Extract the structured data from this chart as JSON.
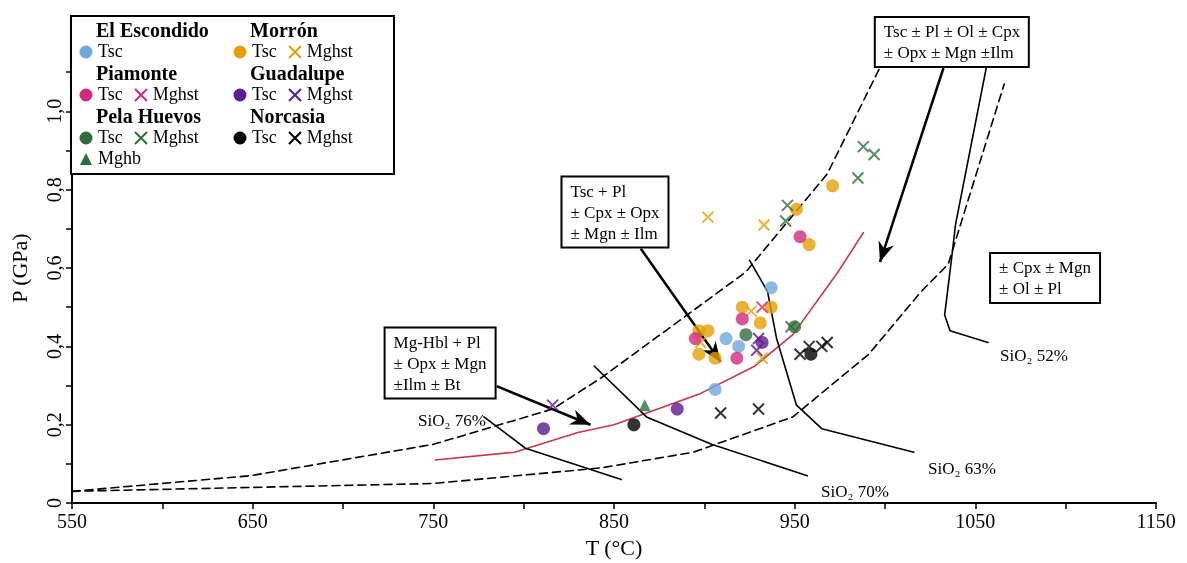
{
  "chart_data": {
    "type": "scatter",
    "xlabel": "T (°C)",
    "ylabel": "P (GPa)",
    "xlim": [
      550,
      1150
    ],
    "xticks": [
      550,
      {
        "value": 600,
        "label": null
      },
      650,
      {
        "value": 700,
        "label": null
      },
      750,
      {
        "value": 800,
        "label": null
      },
      850,
      {
        "value": 900,
        "label": null
      },
      950,
      {
        "value": 1000,
        "label": null
      },
      1050,
      {
        "value": 1100,
        "label": null
      },
      1150
    ],
    "ylim": [
      0,
      1.2
    ],
    "yticks": [
      0,
      {
        "value": 0.1,
        "label": null
      },
      {
        "value": 0.2,
        "label": "0,2"
      },
      {
        "value": 0.3,
        "label": null
      },
      {
        "value": 0.4,
        "label": "0,4"
      },
      {
        "value": 0.5,
        "label": null
      },
      {
        "value": 0.6,
        "label": "0,6"
      },
      {
        "value": 0.7,
        "label": null
      },
      {
        "value": 0.8,
        "label": "0,8"
      },
      {
        "value": 0.9,
        "label": null
      },
      {
        "value": 1.0,
        "label": "1,0"
      },
      {
        "value": 1.1,
        "label": null
      }
    ],
    "grid": false,
    "legend": "top left",
    "annotations": [
      {
        "text": "Tsc + Pl\n± Cpx ± Opx\n± Mgn ± Ilm",
        "x": 909,
        "y": 0.36
      },
      "Tsc ± Pl ± Ol ± Cpx\n± Opx ± Mgn ±Ilm",
      {
        "text": "Mg-Hbl + Pl\n± Opx ± Mgn\n±Ilm ± Bt",
        "x": 837,
        "y": 0.2
      },
      "± Cpx ± Mgn\n± Ol ± Pl",
      "SiO₂ 76%",
      "SiO₂ 70%",
      "SiO₂ 63%",
      "SiO₂ 52%",
      "El Escondido",
      "Morrón",
      "Piamonte",
      "Guadalupe",
      "Pela Huevos",
      "Norcasia"
    ],
    "series": [
      {
        "type": "line",
        "color": "#c8374b",
        "marker": "none",
        "line_style": "solid",
        "x": [
          751,
          795,
          830,
          850,
          898,
          928,
          949,
          974,
          988
        ],
        "values": [
          0.11,
          0.13,
          0.18,
          0.2,
          0.28,
          0.35,
          0.43,
          0.59,
          0.69
        ]
      },
      {
        "type": "line",
        "color": "#000000",
        "marker": "none",
        "line_style": "dashed",
        "x": [
          550,
          649,
          750,
          816,
          843,
          923,
          968,
          997
        ],
        "values": [
          0.03,
          0.07,
          0.15,
          0.24,
          0.32,
          0.59,
          0.84,
          1.11
        ]
      },
      {
        "type": "line",
        "color": "#000000",
        "marker": "none",
        "line_style": "dashed",
        "x": [
          550,
          649,
          750,
          843,
          894,
          949,
          991,
          1020,
          1035,
          1066
        ],
        "values": [
          0.03,
          0.04,
          0.05,
          0.09,
          0.13,
          0.22,
          0.38,
          0.54,
          0.61,
          1.07
        ]
      },
      {
        "type": "line",
        "color": "#000000",
        "marker": "none",
        "line_style": "solid",
        "x": [
          778,
          801,
          854
        ],
        "values": [
          0.22,
          0.14,
          0.06
        ]
      },
      {
        "type": "line",
        "color": "#000000",
        "marker": "none",
        "line_style": "solid",
        "x": [
          839,
          868,
          904,
          957
        ],
        "values": [
          0.35,
          0.22,
          0.15,
          0.07
        ]
      },
      {
        "type": "line",
        "color": "#000000",
        "marker": "none",
        "line_style": "solid",
        "x": [
          925,
          935,
          940,
          951,
          965,
          1016
        ],
        "values": [
          0.62,
          0.54,
          0.42,
          0.25,
          0.19,
          0.13
        ]
      },
      {
        "type": "line",
        "color": "#000000",
        "marker": "none",
        "line_style": "solid",
        "x": [
          1056,
          1039,
          1037,
          1033,
          1036,
          1057
        ],
        "values": [
          1.11,
          0.71,
          0.63,
          0.48,
          0.44,
          0.41
        ]
      },
      {
        "name": "Tsc",
        "color": "#6fa8dc",
        "marker": "circle",
        "x": [
          937,
          912,
          919,
          906
        ],
        "values": [
          0.55,
          0.42,
          0.4,
          0.29
        ]
      },
      {
        "name": "Tsc",
        "color": "#e69f00",
        "marker": "circle",
        "x": [
          971,
          951,
          958,
          897,
          902,
          921,
          937,
          931,
          897,
          906
        ],
        "values": [
          0.81,
          0.75,
          0.66,
          0.44,
          0.44,
          0.5,
          0.5,
          0.46,
          0.38,
          0.37
        ]
      },
      {
        "name": "Mghst",
        "color": "#e69f00",
        "marker": "cross",
        "x": [
          902,
          933,
          898,
          932,
          926
        ],
        "values": [
          0.73,
          0.71,
          0.41,
          0.37,
          0.49
        ]
      },
      {
        "name": "Tsc",
        "color": "#d12a7d",
        "marker": "circle",
        "x": [
          953,
          895,
          921,
          918
        ],
        "values": [
          0.68,
          0.42,
          0.47,
          0.37
        ]
      },
      {
        "name": "Mghst",
        "color": "#d12a7d",
        "marker": "cross",
        "x": [
          932
        ],
        "values": [
          0.5
        ]
      },
      {
        "name": "Tsc",
        "color": "#5c1a8e",
        "marker": "circle",
        "x": [
          811,
          885,
          932
        ],
        "values": [
          0.19,
          0.24,
          0.41
        ]
      },
      {
        "name": "Mghst",
        "color": "#5c1a8e",
        "marker": "cross",
        "x": [
          816,
          930,
          929
        ],
        "values": [
          0.25,
          0.42,
          0.39
        ]
      },
      {
        "name": "Tsc",
        "color": "#2e6e3a",
        "marker": "circle",
        "x": [
          923,
          950
        ],
        "values": [
          0.43,
          0.45
        ]
      },
      {
        "name": "Mghst",
        "color": "#2e6e3a",
        "marker": "cross",
        "x": [
          988,
          994,
          985,
          946,
          945,
          948
        ],
        "values": [
          0.91,
          0.89,
          0.83,
          0.76,
          0.72,
          0.45
        ]
      },
      {
        "name": "Mghb",
        "color": "#2e6e3a",
        "marker": "triangle",
        "x": [
          867
        ],
        "values": [
          0.25
        ]
      },
      {
        "name": "Tsc",
        "color": "#000000",
        "marker": "circle",
        "x": [
          861,
          959
        ],
        "values": [
          0.2,
          0.38
        ]
      },
      {
        "name": "Mghst",
        "color": "#000000",
        "marker": "cross",
        "x": [
          909,
          930,
          953,
          958,
          965,
          968
        ],
        "values": [
          0.23,
          0.24,
          0.38,
          0.4,
          0.4,
          0.41
        ]
      }
    ]
  }
}
